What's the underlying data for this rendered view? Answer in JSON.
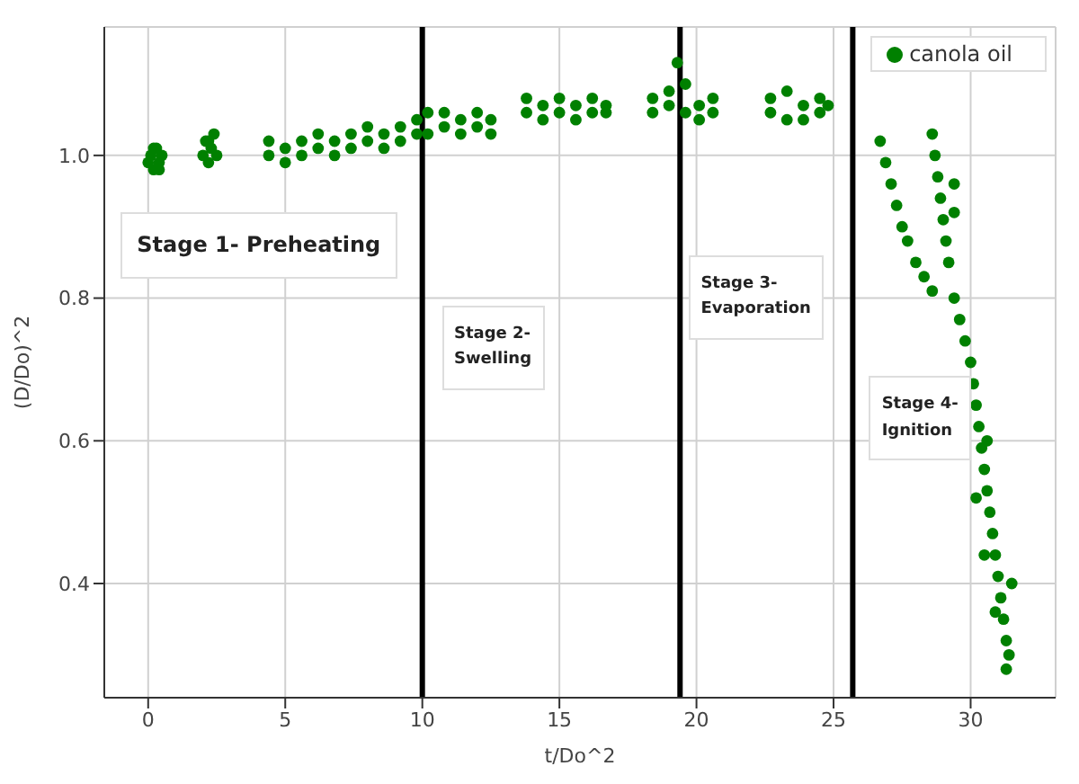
{
  "chart_data": {
    "type": "scatter",
    "xlabel": "t/Do^2",
    "ylabel": "(D/Do)^2",
    "xlim": [
      -1.6,
      33.1
    ],
    "ylim": [
      0.24,
      1.18
    ],
    "xticks": [
      0,
      5,
      10,
      15,
      20,
      25,
      30
    ],
    "yticks": [
      0.4,
      0.6,
      0.8,
      {
        "value": 1,
        "label": "1.0"
      }
    ],
    "grid": true,
    "legend": "top right",
    "marker": "circle",
    "ref_lines": [
      {
        "axis": "x",
        "value": 10,
        "color": "#000000"
      },
      {
        "axis": "x",
        "value": 19.4,
        "color": "#000000"
      },
      {
        "axis": "x",
        "value": 25.7,
        "color": "#000000"
      }
    ],
    "annotations": [
      "Stage 1- Preheating",
      "Stage 2-\nSwelling",
      "Stage 3-\nEvaporation",
      "Stage 4-\nIgnition"
    ],
    "series": [
      {
        "name": "canola oil",
        "color": "#008000",
        "x": [
          0,
          0.1,
          0.2,
          0.3,
          0.4,
          0.5,
          0.2,
          0.4,
          2,
          2.1,
          2.2,
          2.3,
          2.4,
          2.5,
          2.2,
          4.4,
          4.4,
          5,
          5,
          5.6,
          5.6,
          6.2,
          6.2,
          6.8,
          6.8,
          7.4,
          7.4,
          8,
          8,
          8.6,
          8.6,
          9.2,
          9.2,
          9.8,
          9.8,
          10.2,
          10.2,
          10.8,
          10.8,
          11.4,
          11.4,
          12,
          12,
          12.5,
          12.5,
          13.8,
          13.8,
          14.4,
          14.4,
          15,
          15,
          15.6,
          15.6,
          16.2,
          16.2,
          16.7,
          16.7,
          18.4,
          18.4,
          19,
          19,
          19.3,
          19.6,
          19.6,
          20.1,
          20.1,
          20.6,
          20.6,
          22.7,
          22.7,
          23.3,
          23.3,
          23.9,
          23.9,
          24.5,
          24.5,
          24.8,
          26.7,
          26.9,
          27.1,
          27.3,
          27.5,
          27.7,
          28,
          28.3,
          28.6,
          28.6,
          28.7,
          28.8,
          28.9,
          29,
          29.1,
          29.2,
          29.4,
          29.4,
          29.4,
          29.6,
          29.8,
          30,
          30.1,
          30.2,
          30.3,
          30.4,
          30.5,
          30.2,
          30.6,
          30.7,
          30.8,
          30.5,
          30.9,
          31,
          31.1,
          31.2,
          31.3,
          31.4,
          31.3,
          30.9,
          31.5,
          30.6
        ],
        "values": [
          0.99,
          1,
          0.98,
          1.01,
          0.99,
          1,
          1.01,
          0.98,
          1,
          1.02,
          0.99,
          1.01,
          1.03,
          1,
          1.02,
          1,
          1.02,
          1.01,
          0.99,
          1,
          1.02,
          1.01,
          1.03,
          1.02,
          1,
          1.01,
          1.03,
          1.02,
          1.04,
          1.03,
          1.01,
          1.02,
          1.04,
          1.03,
          1.05,
          1.06,
          1.03,
          1.04,
          1.06,
          1.03,
          1.05,
          1.04,
          1.06,
          1.05,
          1.03,
          1.06,
          1.08,
          1.05,
          1.07,
          1.06,
          1.08,
          1.07,
          1.05,
          1.06,
          1.08,
          1.07,
          1.06,
          1.06,
          1.08,
          1.07,
          1.09,
          1.13,
          1.06,
          1.1,
          1.07,
          1.05,
          1.06,
          1.08,
          1.06,
          1.08,
          1.05,
          1.09,
          1.07,
          1.05,
          1.06,
          1.08,
          1.07,
          1.02,
          0.99,
          0.96,
          0.93,
          0.9,
          0.88,
          0.85,
          0.83,
          0.81,
          1.03,
          1,
          0.97,
          0.94,
          0.91,
          0.88,
          0.85,
          0.96,
          0.92,
          0.8,
          0.77,
          0.74,
          0.71,
          0.68,
          0.65,
          0.62,
          0.59,
          0.56,
          0.52,
          0.53,
          0.5,
          0.47,
          0.44,
          0.44,
          0.41,
          0.38,
          0.35,
          0.32,
          0.3,
          0.28,
          0.36,
          0.4,
          0.6
        ]
      }
    ]
  }
}
